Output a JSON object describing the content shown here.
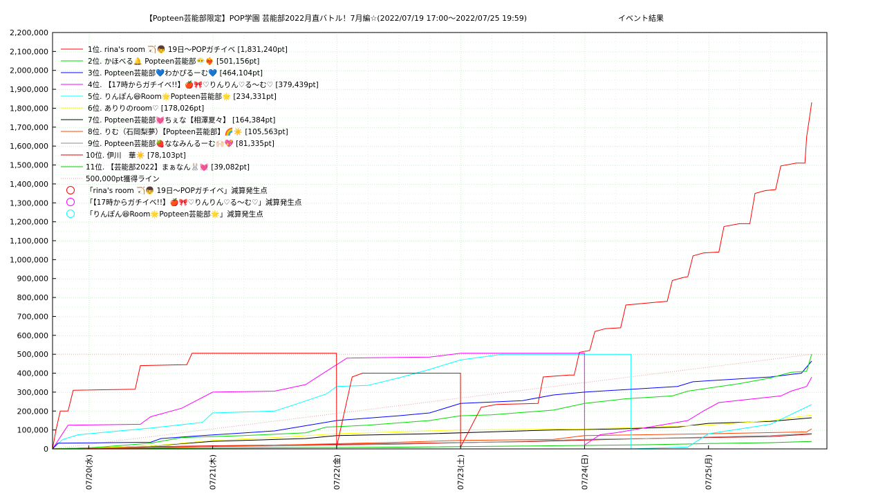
{
  "chart_data": {
    "type": "line",
    "title": "【Popteen芸能部限定】POP学園 芸能部2022月直バトル！7月編☆(2022/07/19 17:00～2022/07/25 19:59)",
    "subtitle": "イベント結果",
    "xlabel": "",
    "ylabel": "",
    "ylim": [
      0,
      2200000
    ],
    "xlim": [
      "2022-07-19 17:00",
      "2022-07-25 19:59"
    ],
    "y_ticks": [
      0,
      100000,
      200000,
      300000,
      400000,
      500000,
      600000,
      700000,
      800000,
      900000,
      1000000,
      1100000,
      1200000,
      1300000,
      1400000,
      1500000,
      1600000,
      1700000,
      1800000,
      1900000,
      2000000,
      2100000,
      2200000
    ],
    "y_tick_labels": [
      "0",
      "100,000",
      "200,000",
      "300,000",
      "400,000",
      "500,000",
      "600,000",
      "700,000",
      "800,000",
      "900,000",
      "1,000,000",
      "1,100,000",
      "1,200,000",
      "1,300,000",
      "1,400,000",
      "1,500,000",
      "1,600,000",
      "1,700,000",
      "1,800,000",
      "1,900,000",
      "2,000,000",
      "2,100,000",
      "2,200,000"
    ],
    "x_tick_labels": [
      {
        "label": "07/20(水)",
        "x": "2022-07-20 00:00"
      },
      {
        "label": "07/21(木)",
        "x": "2022-07-21 00:00"
      },
      {
        "label": "07/22(金)",
        "x": "2022-07-22 00:00"
      },
      {
        "label": "07/23(土)",
        "x": "2022-07-23 00:00"
      },
      {
        "label": "07/24(日)",
        "x": "2022-07-24 00:00"
      },
      {
        "label": "07/25(月)",
        "x": "2022-07-25 00:00"
      }
    ],
    "grid": true,
    "legend_position": "top-left",
    "series": [
      {
        "name": "1位. rina's room 🏹👦 19日〜POPガチイベ [1,831,240pt]",
        "color": "#ff0000",
        "points": [
          [
            "2022-07-19 17:00",
            0
          ],
          [
            "2022-07-19 17:40",
            100000
          ],
          [
            "2022-07-19 18:30",
            200000
          ],
          [
            "2022-07-19 20:00",
            200000
          ],
          [
            "2022-07-19 21:00",
            310000
          ],
          [
            "2022-07-20 09:00",
            315000
          ],
          [
            "2022-07-20 10:00",
            440000
          ],
          [
            "2022-07-20 19:00",
            445000
          ],
          [
            "2022-07-20 20:00",
            505000
          ],
          [
            "2022-07-21 23:59",
            505000
          ],
          [
            "2022-07-22 00:00",
            10000
          ],
          [
            "2022-07-22 03:00",
            380000
          ],
          [
            "2022-07-22 05:00",
            400000
          ],
          [
            "2022-07-22 23:59",
            400000
          ],
          [
            "2022-07-23 00:00",
            10000
          ],
          [
            "2022-07-23 04:00",
            220000
          ],
          [
            "2022-07-23 07:00",
            235000
          ],
          [
            "2022-07-23 15:00",
            240000
          ],
          [
            "2022-07-23 16:00",
            380000
          ],
          [
            "2022-07-23 21:00",
            390000
          ],
          [
            "2022-07-23 22:00",
            390000
          ],
          [
            "2022-07-23 23:00",
            510000
          ],
          [
            "2022-07-24 01:00",
            520000
          ],
          [
            "2022-07-24 02:00",
            620000
          ],
          [
            "2022-07-24 04:00",
            635000
          ],
          [
            "2022-07-24 07:00",
            640000
          ],
          [
            "2022-07-24 08:00",
            760000
          ],
          [
            "2022-07-24 14:00",
            775000
          ],
          [
            "2022-07-24 16:00",
            780000
          ],
          [
            "2022-07-24 17:00",
            890000
          ],
          [
            "2022-07-24 19:00",
            905000
          ],
          [
            "2022-07-24 20:00",
            910000
          ],
          [
            "2022-07-24 21:00",
            1020000
          ],
          [
            "2022-07-24 23:00",
            1035000
          ],
          [
            "2022-07-25 02:00",
            1040000
          ],
          [
            "2022-07-25 03:00",
            1175000
          ],
          [
            "2022-07-25 06:00",
            1190000
          ],
          [
            "2022-07-25 08:00",
            1190000
          ],
          [
            "2022-07-25 09:00",
            1350000
          ],
          [
            "2022-07-25 11:00",
            1365000
          ],
          [
            "2022-07-25 13:00",
            1370000
          ],
          [
            "2022-07-25 14:00",
            1495000
          ],
          [
            "2022-07-25 17:00",
            1510000
          ],
          [
            "2022-07-25 18:40",
            1510000
          ],
          [
            "2022-07-25 19:00",
            1650000
          ],
          [
            "2022-07-25 19:30",
            1740000
          ],
          [
            "2022-07-25 19:59",
            1831240
          ]
        ]
      },
      {
        "name": "2位. かほべる🔔 Popteen芸能部😶‍🌫️❤️‍🔥 [501,156pt]",
        "color": "#00dd00",
        "points": [
          [
            "2022-07-19 17:00",
            0
          ],
          [
            "2022-07-20 00:00",
            5000
          ],
          [
            "2022-07-20 12:00",
            30000
          ],
          [
            "2022-07-20 18:00",
            60000
          ],
          [
            "2022-07-21 06:00",
            70000
          ],
          [
            "2022-07-21 18:00",
            85000
          ],
          [
            "2022-07-21 22:00",
            115000
          ],
          [
            "2022-07-22 06:00",
            125000
          ],
          [
            "2022-07-22 18:00",
            150000
          ],
          [
            "2022-07-23 00:00",
            175000
          ],
          [
            "2022-07-23 06:00",
            180000
          ],
          [
            "2022-07-23 18:00",
            205000
          ],
          [
            "2022-07-24 00:00",
            240000
          ],
          [
            "2022-07-24 08:00",
            265000
          ],
          [
            "2022-07-24 17:00",
            280000
          ],
          [
            "2022-07-24 20:00",
            305000
          ],
          [
            "2022-07-25 06:00",
            345000
          ],
          [
            "2022-07-25 12:00",
            375000
          ],
          [
            "2022-07-25 16:00",
            405000
          ],
          [
            "2022-07-25 19:00",
            410000
          ],
          [
            "2022-07-25 19:59",
            501156
          ]
        ]
      },
      {
        "name": "3位. Popteen芸能部💙わかぴるーむ💙 [464,104pt]",
        "color": "#0000ff",
        "points": [
          [
            "2022-07-19 17:00",
            0
          ],
          [
            "2022-07-19 18:00",
            30000
          ],
          [
            "2022-07-20 12:00",
            35000
          ],
          [
            "2022-07-20 14:00",
            55000
          ],
          [
            "2022-07-20 22:00",
            70000
          ],
          [
            "2022-07-21 12:00",
            95000
          ],
          [
            "2022-07-22 00:00",
            150000
          ],
          [
            "2022-07-22 12:00",
            175000
          ],
          [
            "2022-07-22 18:00",
            190000
          ],
          [
            "2022-07-23 00:00",
            240000
          ],
          [
            "2022-07-23 12:00",
            255000
          ],
          [
            "2022-07-23 18:00",
            285000
          ],
          [
            "2022-07-24 00:00",
            300000
          ],
          [
            "2022-07-24 18:00",
            330000
          ],
          [
            "2022-07-24 21:00",
            355000
          ],
          [
            "2022-07-25 12:00",
            380000
          ],
          [
            "2022-07-25 18:00",
            400000
          ],
          [
            "2022-07-25 19:59",
            464104
          ]
        ]
      },
      {
        "name": "4位. 【17時からガチイベ!!】🍎🎀♡りんりん♡る〜む♡ [379,439pt]",
        "color": "#ff00ff",
        "points": [
          [
            "2022-07-19 17:00",
            0
          ],
          [
            "2022-07-19 20:00",
            125000
          ],
          [
            "2022-07-20 10:00",
            130000
          ],
          [
            "2022-07-20 12:00",
            170000
          ],
          [
            "2022-07-20 18:00",
            215000
          ],
          [
            "2022-07-21 00:00",
            300000
          ],
          [
            "2022-07-21 12:00",
            305000
          ],
          [
            "2022-07-21 18:00",
            340000
          ],
          [
            "2022-07-21 22:00",
            410000
          ],
          [
            "2022-07-22 02:00",
            480000
          ],
          [
            "2022-07-22 18:00",
            485000
          ],
          [
            "2022-07-23 00:00",
            505000
          ],
          [
            "2022-07-23 23:59",
            505000
          ],
          [
            "2022-07-24 00:00",
            20000
          ],
          [
            "2022-07-24 03:00",
            75000
          ],
          [
            "2022-07-24 06:00",
            85000
          ],
          [
            "2022-07-24 20:00",
            150000
          ],
          [
            "2022-07-24 23:00",
            200000
          ],
          [
            "2022-07-25 02:00",
            245000
          ],
          [
            "2022-07-25 14:00",
            280000
          ],
          [
            "2022-07-25 16:00",
            305000
          ],
          [
            "2022-07-25 19:00",
            330000
          ],
          [
            "2022-07-25 19:59",
            379439
          ]
        ]
      },
      {
        "name": "5位. りんぽん😆Room🌟Popteen芸能部🌟 [234,331pt]",
        "color": "#00ffff",
        "points": [
          [
            "2022-07-19 17:00",
            0
          ],
          [
            "2022-07-19 19:00",
            50000
          ],
          [
            "2022-07-19 22:00",
            75000
          ],
          [
            "2022-07-20 12:00",
            110000
          ],
          [
            "2022-07-20 22:00",
            140000
          ],
          [
            "2022-07-21 00:00",
            190000
          ],
          [
            "2022-07-21 12:00",
            200000
          ],
          [
            "2022-07-21 16:00",
            235000
          ],
          [
            "2022-07-21 22:00",
            290000
          ],
          [
            "2022-07-22 00:00",
            330000
          ],
          [
            "2022-07-22 06:00",
            335000
          ],
          [
            "2022-07-22 12:00",
            375000
          ],
          [
            "2022-07-22 18:00",
            420000
          ],
          [
            "2022-07-23 00:00",
            470000
          ],
          [
            "2022-07-23 08:00",
            500000
          ],
          [
            "2022-07-24 09:00",
            500000
          ],
          [
            "2022-07-24 09:01",
            0
          ],
          [
            "2022-07-24 20:00",
            10000
          ],
          [
            "2022-07-25 00:00",
            80000
          ],
          [
            "2022-07-25 12:00",
            130000
          ],
          [
            "2022-07-25 19:59",
            234331
          ]
        ]
      },
      {
        "name": "6位. ありりのroom♡ [178,026pt]",
        "color": "#ffff00",
        "points": [
          [
            "2022-07-19 17:00",
            0
          ],
          [
            "2022-07-20 12:00",
            15000
          ],
          [
            "2022-07-21 00:00",
            45000
          ],
          [
            "2022-07-21 12:00",
            60000
          ],
          [
            "2022-07-22 00:00",
            80000
          ],
          [
            "2022-07-23 00:00",
            100000
          ],
          [
            "2022-07-24 00:00",
            105000
          ],
          [
            "2022-07-25 00:00",
            125000
          ],
          [
            "2022-07-25 12:00",
            150000
          ],
          [
            "2022-07-25 19:59",
            178026
          ]
        ]
      },
      {
        "name": "7位. Popteen芸能部💓ちぇな【相澤夏々】 [164,384pt]",
        "color": "#000000",
        "points": [
          [
            "2022-07-19 17:00",
            0
          ],
          [
            "2022-07-20 12:00",
            15000
          ],
          [
            "2022-07-21 00:00",
            40000
          ],
          [
            "2022-07-21 18:00",
            55000
          ],
          [
            "2022-07-22 00:00",
            70000
          ],
          [
            "2022-07-22 18:00",
            80000
          ],
          [
            "2022-07-23 06:00",
            90000
          ],
          [
            "2022-07-23 18:00",
            100000
          ],
          [
            "2022-07-24 06:00",
            105000
          ],
          [
            "2022-07-24 18:00",
            115000
          ],
          [
            "2022-07-25 00:00",
            135000
          ],
          [
            "2022-07-25 12:00",
            145000
          ],
          [
            "2022-07-25 19:59",
            164384
          ]
        ]
      },
      {
        "name": "8位. りむ（石岡梨夢）【Popteen芸能部】🌈☀️ [105,563pt]",
        "color": "#ff4400",
        "points": [
          [
            "2022-07-19 17:00",
            0
          ],
          [
            "2022-07-20 12:00",
            5000
          ],
          [
            "2022-07-21 12:00",
            20000
          ],
          [
            "2022-07-22 12:00",
            35000
          ],
          [
            "2022-07-23 00:00",
            45000
          ],
          [
            "2022-07-23 18:00",
            50000
          ],
          [
            "2022-07-24 00:00",
            70000
          ],
          [
            "2022-07-24 12:00",
            75000
          ],
          [
            "2022-07-25 00:00",
            80000
          ],
          [
            "2022-07-25 19:00",
            90000
          ],
          [
            "2022-07-25 19:59",
            105563
          ]
        ]
      },
      {
        "name": "9位. Popteen芸能部🍓ななみんるーむ🙌🏻💖 [81,335pt]",
        "color": "#888888",
        "points": [
          [
            "2022-07-19 17:00",
            0
          ],
          [
            "2022-07-20 12:00",
            8000
          ],
          [
            "2022-07-21 12:00",
            15000
          ],
          [
            "2022-07-22 12:00",
            25000
          ],
          [
            "2022-07-23 12:00",
            40000
          ],
          [
            "2022-07-24 00:00",
            50000
          ],
          [
            "2022-07-24 12:00",
            55000
          ],
          [
            "2022-07-25 12:00",
            70000
          ],
          [
            "2022-07-25 19:59",
            81335
          ]
        ]
      },
      {
        "name": "10位. 伊川　華☀️ [78,103pt]",
        "color": "#dd0000",
        "points": [
          [
            "2022-07-19 17:00",
            0
          ],
          [
            "2022-07-20 12:00",
            12000
          ],
          [
            "2022-07-21 12:00",
            20000
          ],
          [
            "2022-07-22 12:00",
            28000
          ],
          [
            "2022-07-23 12:00",
            38000
          ],
          [
            "2022-07-24 12:00",
            55000
          ],
          [
            "2022-07-25 00:00",
            60000
          ],
          [
            "2022-07-25 12:00",
            65000
          ],
          [
            "2022-07-25 19:59",
            78103
          ]
        ]
      },
      {
        "name": "11位. 【芸能部2022】まぁなん🐰💓 [39,082pt]",
        "color": "#00cc00",
        "points": [
          [
            "2022-07-19 17:00",
            0
          ],
          [
            "2022-07-20 12:00",
            3000
          ],
          [
            "2022-07-21 12:00",
            6000
          ],
          [
            "2022-07-22 12:00",
            9000
          ],
          [
            "2022-07-23 12:00",
            15000
          ],
          [
            "2022-07-24 12:00",
            22000
          ],
          [
            "2022-07-25 00:00",
            28000
          ],
          [
            "2022-07-25 12:00",
            33000
          ],
          [
            "2022-07-25 19:59",
            39082
          ]
        ]
      }
    ],
    "target_line": {
      "name": "500,000pt獲得ライン",
      "color": "#e8a0a0",
      "points": [
        [
          "2022-07-19 17:00",
          0
        ],
        [
          "2022-07-25 19:59",
          500000
        ]
      ]
    },
    "deduction_markers": [
      {
        "name": "「rina's room 🏹👦 19日〜POPガチイベ」減算発生点",
        "color": "#ff0000"
      },
      {
        "name": "「【17時からガチイベ!!】🍎🎀♡りんりん♡る〜む♡」減算発生点",
        "color": "#ff00ff"
      },
      {
        "name": "「りんぽん😆Room🌟Popteen芸能部🌟」減算発生点",
        "color": "#00ffff"
      }
    ]
  }
}
